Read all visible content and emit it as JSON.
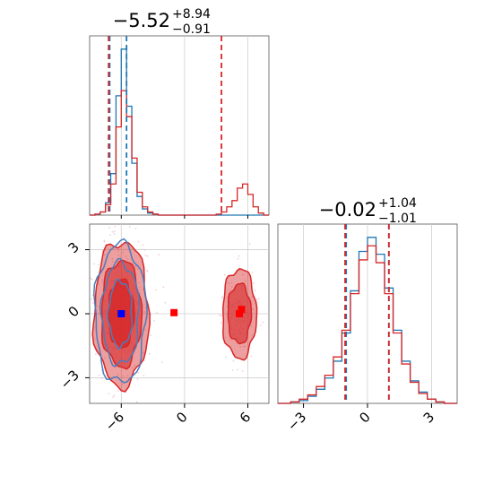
{
  "chart_data": [
    {
      "type": "histogram",
      "panel": "marginal-x",
      "title": {
        "base": "−5.52",
        "sup": "+8.94",
        "sub": "−0.91"
      },
      "xlim": [
        -9,
        8
      ],
      "bins_x": [
        -9.0,
        -8.5,
        -8.0,
        -7.5,
        -7.0,
        -6.5,
        -6.0,
        -5.5,
        -5.0,
        -4.5,
        -4.0,
        -3.5,
        -3.0,
        -2.5,
        2.5,
        3.0,
        3.5,
        4.0,
        4.5,
        5.0,
        5.5,
        6.0,
        6.5,
        7.0,
        7.5
      ],
      "series": [
        {
          "name": "",
          "color": "#1f77b4",
          "values": [
            0,
            1,
            3,
            12,
            40,
            115,
            160,
            105,
            50,
            18,
            6,
            2,
            1,
            0,
            0,
            0,
            0,
            0,
            0,
            0,
            0,
            0,
            0,
            0,
            0
          ]
        },
        {
          "name": "",
          "color": "#d62728",
          "values": [
            0,
            1,
            3,
            10,
            30,
            85,
            120,
            95,
            55,
            22,
            8,
            3,
            1,
            0,
            0,
            1,
            3,
            8,
            14,
            26,
            30,
            20,
            8,
            2,
            0
          ]
        }
      ],
      "quantile_lines": [
        {
          "color": "#1f77b4",
          "x": [
            -7.1,
            -5.5
          ]
        },
        {
          "color": "#d62728",
          "x": [
            -7.2,
            3.5
          ]
        }
      ]
    },
    {
      "type": "scatter",
      "panel": "joint",
      "xlim": [
        -9,
        8
      ],
      "ylim": [
        -4.2,
        4.2
      ],
      "xticks": [
        "−6",
        "0",
        "6"
      ],
      "yticks": [
        "3",
        "0",
        "−3"
      ],
      "markers": [
        {
          "color": "#0000ff",
          "x": -6.0,
          "y": 0.0
        },
        {
          "color": "#ff0000",
          "x": -1.0,
          "y": 0.05
        },
        {
          "color": "#ff0000",
          "x": 5.4,
          "y": 0.2
        },
        {
          "color": "#ff0000",
          "x": 5.2,
          "y": 0.0
        }
      ],
      "contour_clusters": [
        {
          "x": -6.0,
          "y": 0.0,
          "rx": [
            2.6,
            1.9,
            1.2
          ],
          "ry": [
            3.4,
            2.5,
            1.6
          ]
        },
        {
          "x": 5.2,
          "y": 0.0,
          "rx": [
            1.6,
            1.1
          ],
          "ry": [
            2.1,
            1.4
          ]
        }
      ]
    },
    {
      "type": "histogram",
      "panel": "marginal-y",
      "title": {
        "base": "−0.02",
        "sup": "+1.04",
        "sub": "−1.01"
      },
      "xlim": [
        -4.2,
        4.2
      ],
      "xticks": [
        "−3",
        "0",
        "3"
      ],
      "bins_x": [
        -4.0,
        -3.6,
        -3.2,
        -2.8,
        -2.4,
        -2.0,
        -1.6,
        -1.2,
        -0.8,
        -0.4,
        0.0,
        0.4,
        0.8,
        1.2,
        1.6,
        2.0,
        2.4,
        2.8,
        3.2,
        3.6
      ],
      "series": [
        {
          "name": "",
          "color": "#1f77b4",
          "values": [
            0,
            1,
            2,
            5,
            10,
            18,
            30,
            50,
            80,
            108,
            118,
            106,
            82,
            52,
            30,
            16,
            8,
            3,
            1,
            0
          ]
        },
        {
          "name": "",
          "color": "#d62728",
          "values": [
            0,
            1,
            3,
            6,
            12,
            20,
            33,
            52,
            78,
            102,
            112,
            100,
            78,
            50,
            28,
            15,
            7,
            3,
            1,
            0
          ]
        }
      ],
      "quantile_lines": [
        {
          "color": "#1f77b4",
          "x": [
            -1.0,
            1.0
          ]
        },
        {
          "color": "#d62728",
          "x": [
            -1.05,
            1.0
          ]
        }
      ]
    }
  ]
}
